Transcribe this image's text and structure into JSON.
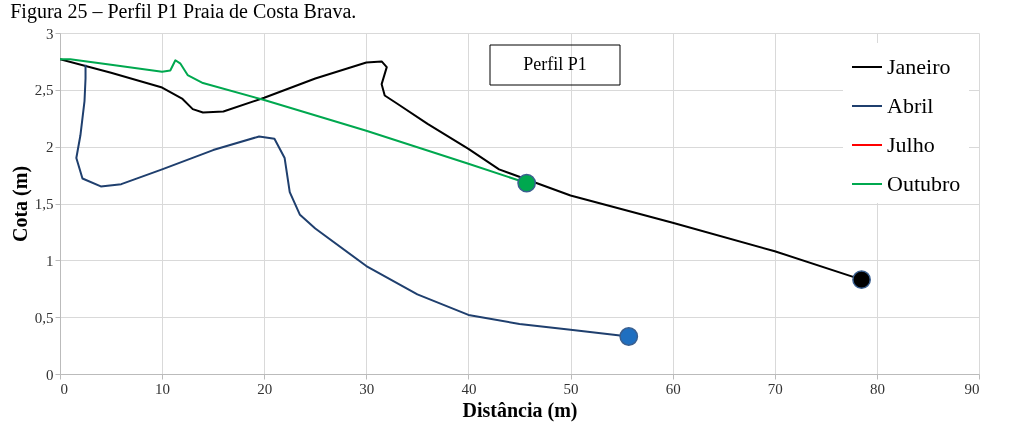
{
  "chart_data": {
    "type": "line",
    "title": "Figura 25 – Perfil P1 Praia de Costa Brava.",
    "xlabel": "Distância (m)",
    "ylabel": "Cota (m)",
    "annotations": [
      "Perfil P1"
    ],
    "xlim": [
      0,
      90
    ],
    "xticks": [
      0,
      10,
      20,
      30,
      40,
      50,
      60,
      70,
      80,
      90
    ],
    "ylim": [
      0,
      3
    ],
    "yticks": [
      0,
      {
        "value": 0.5,
        "label": "0,5"
      },
      1,
      {
        "value": 1.5,
        "label": "1,5"
      },
      2,
      {
        "value": 2.5,
        "label": "2,5"
      },
      3
    ],
    "grid": true,
    "legend": "top right",
    "line_style": "solid",
    "series": [
      {
        "name": "Janeiro",
        "color": "#000000",
        "x": [
          0,
          5,
          10,
          12,
          13,
          14,
          16,
          20,
          25,
          30,
          31.5,
          32,
          31.5,
          31.8,
          33,
          36,
          40,
          43,
          50,
          60,
          70,
          78.5
        ],
        "values": [
          2.77,
          2.65,
          2.52,
          2.42,
          2.33,
          2.3,
          2.31,
          2.43,
          2.6,
          2.74,
          2.75,
          2.7,
          2.55,
          2.45,
          2.38,
          2.2,
          1.98,
          1.8,
          1.57,
          1.33,
          1.08,
          0.83
        ]
      },
      {
        "name": "Abril",
        "color": "#1f3f6e",
        "x": [
          2.5,
          2.5,
          2.4,
          2,
          1.6,
          2.2,
          4,
          6,
          10,
          15,
          19.5,
          21,
          22,
          22.5,
          23.5,
          25,
          30,
          35,
          40,
          45,
          50,
          55.7
        ],
        "values": [
          2.72,
          2.6,
          2.4,
          2.1,
          1.9,
          1.72,
          1.65,
          1.67,
          1.8,
          1.97,
          2.09,
          2.07,
          1.9,
          1.6,
          1.4,
          1.28,
          0.95,
          0.7,
          0.52,
          0.44,
          0.39,
          0.33
        ]
      },
      {
        "name": "Julho",
        "color": "#ff0000"
      },
      {
        "name": "Outubro",
        "color": "#00a84f",
        "x": [
          0,
          1,
          5,
          10,
          10.8,
          11.3,
          11.8,
          12.5,
          14,
          20,
          30,
          40,
          45.7
        ],
        "values": [
          2.77,
          2.77,
          2.72,
          2.66,
          2.67,
          2.76,
          2.73,
          2.63,
          2.56,
          2.41,
          2.14,
          1.85,
          1.68
        ]
      },
      {
        "type": "scatter",
        "marker": "circle",
        "color": "#000000",
        "x": [
          78.5
        ],
        "values": [
          0.83
        ]
      },
      {
        "type": "scatter",
        "marker": "circle",
        "color": "#1f6fc0",
        "x": [
          55.7
        ],
        "values": [
          0.33
        ]
      },
      {
        "type": "scatter",
        "marker": "circle",
        "color": "#00a84f",
        "x": [
          45.7
        ],
        "values": [
          1.68
        ]
      }
    ]
  }
}
